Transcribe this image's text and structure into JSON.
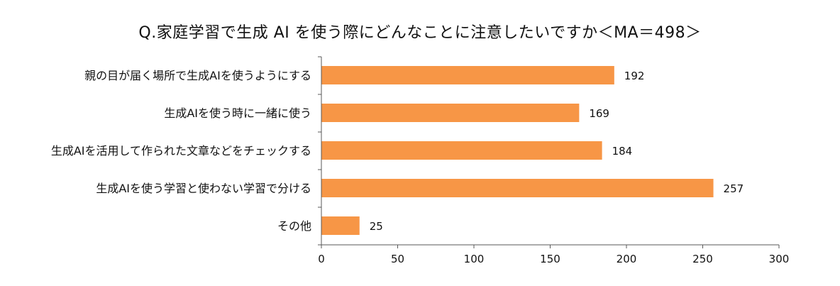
{
  "title": "Q.家庭学習で生成 AI を使う際にどんなことに注意したいですか＜MA＝498＞",
  "colors": {
    "bar": "#F79646",
    "axis": "#595959"
  },
  "chart_data": {
    "type": "bar",
    "orientation": "horizontal",
    "title": "Q.家庭学習で生成 AI を使う際にどんなことに注意したいですか＜MA＝498＞",
    "categories": [
      "親の目が届く場所で生成AIを使うようにする",
      "生成AIを使う時に一緒に使う",
      "生成AIを活用して作られた文章などをチェックする",
      "生成AIを使う学習と使わない学習で分ける",
      "その他"
    ],
    "values": [
      192,
      169,
      184,
      257,
      25
    ],
    "xlim": [
      0,
      300
    ],
    "xticks": [
      0,
      50,
      100,
      150,
      200,
      250,
      300
    ],
    "grid": false,
    "legend": "none"
  }
}
